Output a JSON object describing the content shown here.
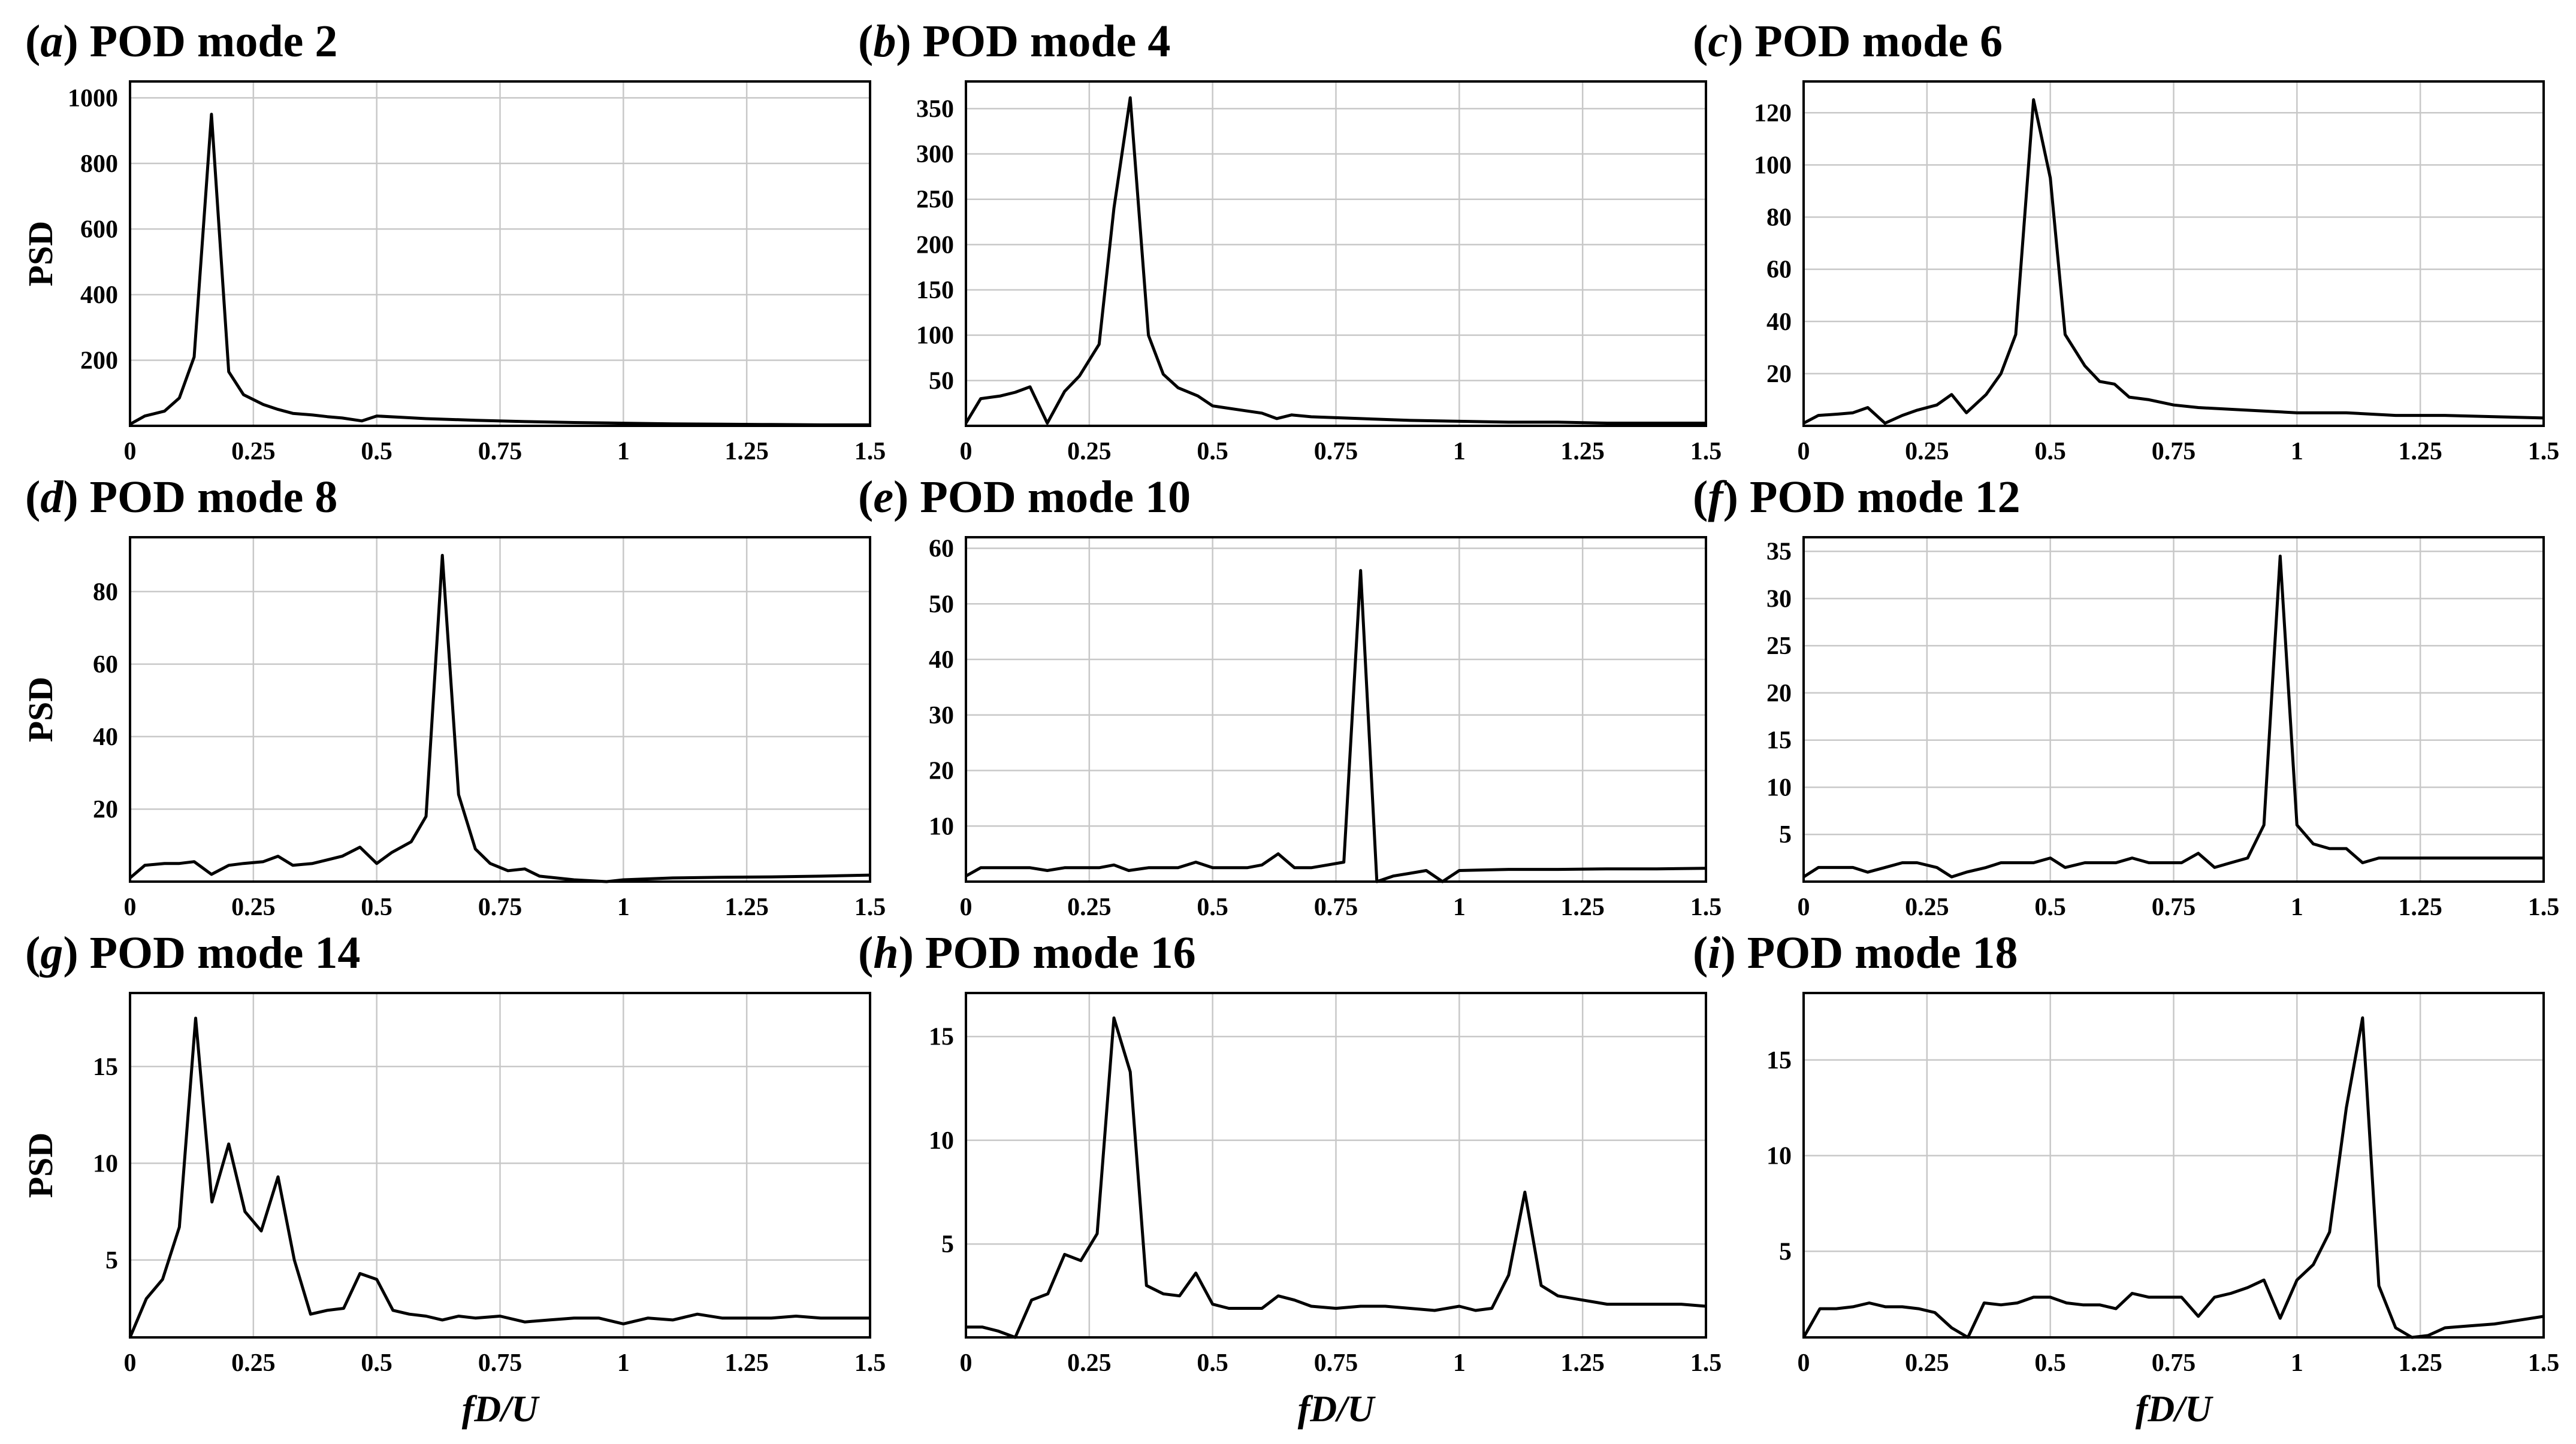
{
  "figure": {
    "xlabel": "fD/U"
  },
  "chart_data": [
    {
      "type": "line",
      "label": "(a)",
      "title": "POD mode 2",
      "ylabel": "PSD",
      "xlabel": "",
      "xlim": [
        0,
        1.5
      ],
      "ylim": [
        0,
        1050
      ],
      "xticks": [
        0,
        0.25,
        0.5,
        0.75,
        1,
        1.25,
        1.5
      ],
      "xtick_labels": [
        "0",
        "0.25",
        "0.5",
        "0.75",
        "1",
        "1.25",
        "1.5"
      ],
      "yticks": [
        200,
        400,
        600,
        800,
        1000
      ],
      "ytick_labels": [
        "200",
        "400",
        "600",
        "800",
        "1000"
      ],
      "x": [
        0,
        0.03,
        0.07,
        0.1,
        0.13,
        0.165,
        0.2,
        0.23,
        0.27,
        0.3,
        0.33,
        0.37,
        0.4,
        0.43,
        0.47,
        0.5,
        0.55,
        0.6,
        0.7,
        0.8,
        0.9,
        1.0,
        1.1,
        1.2,
        1.3,
        1.4,
        1.5
      ],
      "y": [
        5,
        30,
        45,
        85,
        210,
        950,
        165,
        95,
        65,
        50,
        38,
        33,
        28,
        24,
        15,
        30,
        26,
        22,
        17,
        13,
        10,
        8,
        6,
        5,
        4,
        3,
        3
      ]
    },
    {
      "type": "line",
      "label": "(b)",
      "title": "POD mode 4",
      "ylabel": "",
      "xlabel": "",
      "xlim": [
        0,
        1.5
      ],
      "ylim": [
        0,
        380
      ],
      "xticks": [
        0,
        0.25,
        0.5,
        0.75,
        1,
        1.25,
        1.5
      ],
      "xtick_labels": [
        "0",
        "0.25",
        "0.5",
        "0.75",
        "1",
        "1.25",
        "1.5"
      ],
      "yticks": [
        50,
        100,
        150,
        200,
        250,
        300,
        350
      ],
      "ytick_labels": [
        "50",
        "100",
        "150",
        "200",
        "250",
        "300",
        "350"
      ],
      "x": [
        0,
        0.03,
        0.07,
        0.1,
        0.13,
        0.165,
        0.2,
        0.23,
        0.27,
        0.3,
        0.333,
        0.37,
        0.4,
        0.43,
        0.47,
        0.5,
        0.55,
        0.6,
        0.63,
        0.66,
        0.7,
        0.8,
        0.9,
        1.0,
        1.1,
        1.2,
        1.3,
        1.4,
        1.5
      ],
      "y": [
        3,
        30,
        33,
        37,
        43,
        3,
        38,
        55,
        90,
        240,
        362,
        100,
        57,
        42,
        33,
        22,
        18,
        14,
        8,
        12,
        10,
        8,
        6,
        5,
        4,
        4,
        3,
        3,
        3
      ]
    },
    {
      "type": "line",
      "label": "(c)",
      "title": "POD mode 6",
      "ylabel": "",
      "xlabel": "",
      "xlim": [
        0,
        1.5
      ],
      "ylim": [
        0,
        132
      ],
      "xticks": [
        0,
        0.25,
        0.5,
        0.75,
        1,
        1.25,
        1.5
      ],
      "xtick_labels": [
        "0",
        "0.25",
        "0.5",
        "0.75",
        "1",
        "1.25",
        "1.5"
      ],
      "yticks": [
        20,
        40,
        60,
        80,
        100,
        120
      ],
      "ytick_labels": [
        "20",
        "40",
        "60",
        "80",
        "100",
        "120"
      ],
      "x": [
        0,
        0.03,
        0.07,
        0.1,
        0.13,
        0.165,
        0.2,
        0.23,
        0.27,
        0.3,
        0.33,
        0.37,
        0.4,
        0.43,
        0.466,
        0.5,
        0.53,
        0.57,
        0.6,
        0.63,
        0.66,
        0.7,
        0.75,
        0.8,
        0.9,
        1.0,
        1.1,
        1.2,
        1.3,
        1.4,
        1.5
      ],
      "y": [
        1,
        4,
        4.5,
        5,
        7,
        1,
        4,
        6,
        8,
        12,
        5,
        12,
        20,
        35,
        125,
        95,
        35,
        23,
        17,
        16,
        11,
        10,
        8,
        7,
        6,
        5,
        5,
        4,
        4,
        3.5,
        3
      ]
    },
    {
      "type": "line",
      "label": "(d)",
      "title": "POD mode 8",
      "ylabel": "PSD",
      "xlabel": "",
      "xlim": [
        0,
        1.5
      ],
      "ylim": [
        0,
        95
      ],
      "xticks": [
        0,
        0.25,
        0.5,
        0.75,
        1,
        1.25,
        1.5
      ],
      "xtick_labels": [
        "0",
        "0.25",
        "0.5",
        "0.75",
        "1",
        "1.25",
        "1.5"
      ],
      "yticks": [
        20,
        40,
        60,
        80
      ],
      "ytick_labels": [
        "20",
        "40",
        "60",
        "80"
      ],
      "x": [
        0,
        0.03,
        0.07,
        0.1,
        0.13,
        0.165,
        0.2,
        0.23,
        0.27,
        0.3,
        0.33,
        0.37,
        0.4,
        0.43,
        0.466,
        0.5,
        0.53,
        0.57,
        0.6,
        0.633,
        0.666,
        0.7,
        0.73,
        0.766,
        0.8,
        0.83,
        0.9,
        0.966,
        1.0,
        1.1,
        1.2,
        1.3,
        1.4,
        1.5
      ],
      "y": [
        1,
        4.5,
        5,
        5,
        5.5,
        2,
        4.5,
        5,
        5.5,
        7,
        4.5,
        5,
        6,
        7,
        9.5,
        5,
        8,
        11,
        18,
        90,
        24,
        9,
        5,
        3,
        3.5,
        1.5,
        0.5,
        0,
        0.5,
        1,
        1.2,
        1.3,
        1.5,
        1.8
      ]
    },
    {
      "type": "line",
      "label": "(e)",
      "title": "POD mode 10",
      "ylabel": "",
      "xlabel": "",
      "xlim": [
        0,
        1.5
      ],
      "ylim": [
        0,
        62
      ],
      "xticks": [
        0,
        0.25,
        0.5,
        0.75,
        1,
        1.25,
        1.5
      ],
      "xtick_labels": [
        "0",
        "0.25",
        "0.5",
        "0.75",
        "1",
        "1.25",
        "1.5"
      ],
      "yticks": [
        10,
        20,
        30,
        40,
        50,
        60
      ],
      "ytick_labels": [
        "10",
        "20",
        "30",
        "40",
        "50",
        "60"
      ],
      "x": [
        0,
        0.03,
        0.07,
        0.1,
        0.13,
        0.165,
        0.2,
        0.23,
        0.27,
        0.3,
        0.33,
        0.37,
        0.4,
        0.43,
        0.466,
        0.5,
        0.53,
        0.57,
        0.6,
        0.633,
        0.666,
        0.7,
        0.733,
        0.766,
        0.8,
        0.833,
        0.866,
        0.9,
        0.933,
        0.966,
        1.0,
        1.1,
        1.2,
        1.3,
        1.4,
        1.5
      ],
      "y": [
        1,
        2.5,
        2.5,
        2.5,
        2.5,
        2,
        2.5,
        2.5,
        2.5,
        3,
        2,
        2.5,
        2.5,
        2.5,
        3.5,
        2.5,
        2.5,
        2.5,
        3,
        5,
        2.5,
        2.5,
        3,
        3.5,
        56,
        0,
        1,
        1.5,
        2,
        0,
        2,
        2.2,
        2.2,
        2.3,
        2.3,
        2.4
      ]
    },
    {
      "type": "line",
      "label": "(f)",
      "title": "POD mode 12",
      "ylabel": "",
      "xlabel": "",
      "xlim": [
        0,
        1.5
      ],
      "ylim": [
        0,
        36.5
      ],
      "xticks": [
        0,
        0.25,
        0.5,
        0.75,
        1,
        1.25,
        1.5
      ],
      "xtick_labels": [
        "0",
        "0.25",
        "0.5",
        "0.75",
        "1",
        "1.25",
        "1.5"
      ],
      "yticks": [
        5,
        10,
        15,
        20,
        25,
        30,
        35
      ],
      "ytick_labels": [
        "5",
        "10",
        "15",
        "20",
        "25",
        "30",
        "35"
      ],
      "x": [
        0,
        0.03,
        0.07,
        0.1,
        0.13,
        0.165,
        0.2,
        0.23,
        0.27,
        0.3,
        0.33,
        0.37,
        0.4,
        0.43,
        0.466,
        0.5,
        0.53,
        0.57,
        0.6,
        0.633,
        0.666,
        0.7,
        0.733,
        0.766,
        0.8,
        0.833,
        0.866,
        0.9,
        0.933,
        0.966,
        1.0,
        1.033,
        1.066,
        1.1,
        1.133,
        1.166,
        1.2,
        1.25,
        1.3,
        1.4,
        1.5
      ],
      "y": [
        0.5,
        1.5,
        1.5,
        1.5,
        1,
        1.5,
        2,
        2,
        1.5,
        0.5,
        1,
        1.5,
        2,
        2,
        2,
        2.5,
        1.5,
        2,
        2,
        2,
        2.5,
        2,
        2,
        2,
        3,
        1.5,
        2,
        2.5,
        6,
        34.5,
        6,
        4,
        3.5,
        3.5,
        2,
        2.5,
        2.5,
        2.5,
        2.5,
        2.5,
        2.5
      ]
    },
    {
      "type": "line",
      "label": "(g)",
      "title": "POD mode 14",
      "ylabel": "PSD",
      "xlabel": "fD/U",
      "xlim": [
        0,
        1.5
      ],
      "ylim": [
        1,
        18.8
      ],
      "xticks": [
        0,
        0.25,
        0.5,
        0.75,
        1,
        1.25,
        1.5
      ],
      "xtick_labels": [
        "0",
        "0.25",
        "0.5",
        "0.75",
        "1",
        "1.25",
        "1.5"
      ],
      "yticks": [
        5,
        10,
        15
      ],
      "ytick_labels": [
        "5",
        "10",
        "15"
      ],
      "x": [
        0,
        0.033,
        0.066,
        0.1,
        0.133,
        0.166,
        0.2,
        0.233,
        0.266,
        0.3,
        0.333,
        0.366,
        0.4,
        0.433,
        0.466,
        0.5,
        0.533,
        0.566,
        0.6,
        0.633,
        0.666,
        0.7,
        0.75,
        0.8,
        0.85,
        0.9,
        0.95,
        1.0,
        1.05,
        1.1,
        1.15,
        1.2,
        1.25,
        1.3,
        1.35,
        1.4,
        1.45,
        1.5
      ],
      "y": [
        1,
        3,
        4,
        6.7,
        17.5,
        8,
        11,
        7.5,
        6.5,
        9.3,
        5,
        2.2,
        2.4,
        2.5,
        4.3,
        4,
        2.4,
        2.2,
        2.1,
        1.9,
        2.1,
        2,
        2.1,
        1.8,
        1.9,
        2,
        2,
        1.7,
        2,
        1.9,
        2.2,
        2,
        2,
        2,
        2.1,
        2,
        2,
        2
      ]
    },
    {
      "type": "line",
      "label": "(h)",
      "title": "POD mode 16",
      "ylabel": "",
      "xlabel": "fD/U",
      "xlim": [
        0,
        1.5
      ],
      "ylim": [
        0.5,
        17.1
      ],
      "xticks": [
        0,
        0.25,
        0.5,
        0.75,
        1,
        1.25,
        1.5
      ],
      "xtick_labels": [
        "0",
        "0.25",
        "0.5",
        "0.75",
        "1",
        "1.25",
        "1.5"
      ],
      "yticks": [
        5,
        10,
        15
      ],
      "ytick_labels": [
        "5",
        "10",
        "15"
      ],
      "x": [
        0,
        0.033,
        0.066,
        0.1,
        0.133,
        0.166,
        0.2,
        0.233,
        0.266,
        0.3,
        0.333,
        0.366,
        0.4,
        0.433,
        0.466,
        0.5,
        0.533,
        0.566,
        0.6,
        0.633,
        0.666,
        0.7,
        0.75,
        0.8,
        0.85,
        0.9,
        0.95,
        1.0,
        1.033,
        1.066,
        1.1,
        1.133,
        1.166,
        1.2,
        1.25,
        1.3,
        1.35,
        1.4,
        1.45,
        1.5
      ],
      "y": [
        1,
        1,
        0.8,
        0.5,
        2.3,
        2.6,
        4.5,
        4.2,
        5.5,
        15.9,
        13.3,
        3,
        2.6,
        2.5,
        3.6,
        2.1,
        1.9,
        1.9,
        1.9,
        2.5,
        2.3,
        2,
        1.9,
        2,
        2,
        1.9,
        1.8,
        2,
        1.8,
        1.9,
        3.5,
        7.5,
        3,
        2.5,
        2.3,
        2.1,
        2.1,
        2.1,
        2.1,
        2
      ]
    },
    {
      "type": "line",
      "label": "(i)",
      "title": "POD mode 18",
      "ylabel": "",
      "xlabel": "fD/U",
      "xlim": [
        0,
        1.5
      ],
      "ylim": [
        0.5,
        18.5
      ],
      "xticks": [
        0,
        0.25,
        0.5,
        0.75,
        1,
        1.25,
        1.5
      ],
      "xtick_labels": [
        "0",
        "0.25",
        "0.5",
        "0.75",
        "1",
        "1.25",
        "1.5"
      ],
      "yticks": [
        5,
        10,
        15
      ],
      "ytick_labels": [
        "5",
        "10",
        "15"
      ],
      "x": [
        0,
        0.033,
        0.066,
        0.1,
        0.133,
        0.166,
        0.2,
        0.233,
        0.266,
        0.3,
        0.333,
        0.366,
        0.4,
        0.433,
        0.466,
        0.5,
        0.533,
        0.566,
        0.6,
        0.633,
        0.666,
        0.7,
        0.733,
        0.766,
        0.8,
        0.833,
        0.866,
        0.9,
        0.933,
        0.966,
        1.0,
        1.033,
        1.066,
        1.1,
        1.133,
        1.166,
        1.2,
        1.233,
        1.266,
        1.3,
        1.35,
        1.4,
        1.45,
        1.5
      ],
      "y": [
        0.5,
        2,
        2,
        2.1,
        2.3,
        2.1,
        2.1,
        2,
        1.8,
        1,
        0.5,
        2.3,
        2.2,
        2.3,
        2.6,
        2.6,
        2.3,
        2.2,
        2.2,
        2,
        2.8,
        2.6,
        2.6,
        2.6,
        1.6,
        2.6,
        2.8,
        3.1,
        3.5,
        1.5,
        3.5,
        4.3,
        6,
        12.5,
        17.2,
        3.2,
        1,
        0.5,
        0.6,
        1,
        1.1,
        1.2,
        1.4,
        1.6
      ]
    }
  ]
}
